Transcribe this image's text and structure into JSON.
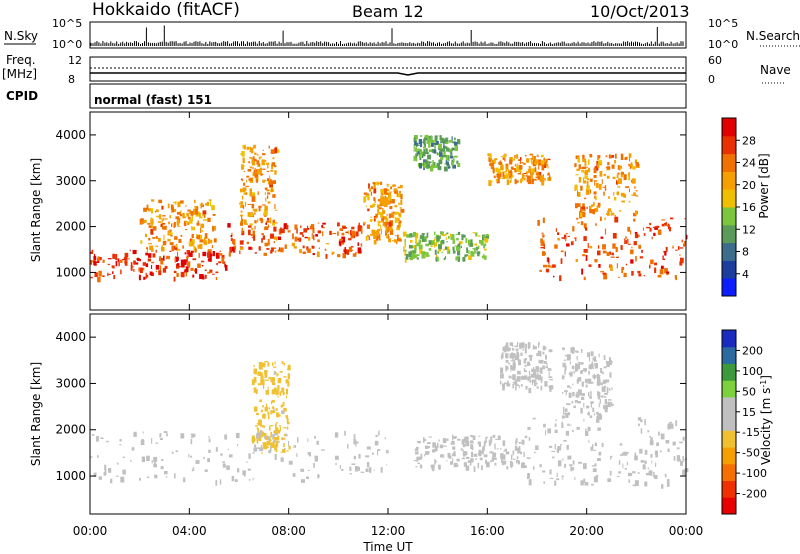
{
  "header": {
    "station": "Hokkaido (fitACF)",
    "beam": "Beam 12",
    "date": "10/Oct/2013"
  },
  "top_panels": {
    "nsky_label": "N.Sky",
    "nsky_ticks": [
      "10^5",
      "10^0"
    ],
    "nsearch_label": "N.Search",
    "freq_label_1": "Freq.",
    "freq_label_2": "[MHz]",
    "freq_ticks": [
      "12",
      "8"
    ],
    "nave_label": "Nave",
    "nave_ticks": [
      "60",
      "0"
    ],
    "cpid_label": "CPID",
    "cpid_value": "normal (fast) 151"
  },
  "chart_data": [
    {
      "type": "heatmap",
      "panel": "power",
      "ylabel": "Slant Range [km]",
      "yticks": [
        1000,
        2000,
        3000,
        4000
      ],
      "ylim": [
        180,
        4500
      ],
      "xlim": [
        0,
        24
      ],
      "colorbar_label": "Power [dB]",
      "colorbar_ticks": [
        28,
        24,
        20,
        16,
        12,
        8,
        4
      ],
      "colorbar_range": [
        0,
        32
      ],
      "colors": [
        "#0a1eff",
        "#1a3d9e",
        "#3c6e8c",
        "#5a9b5a",
        "#7bc63c",
        "#f0c000",
        "#f5a000",
        "#f07000",
        "#e83000",
        "#e00000"
      ],
      "regions": [
        {
          "t0": 0.0,
          "t1": 5.5,
          "r0": 900,
          "r1": 1500,
          "level": 28
        },
        {
          "t0": 5.5,
          "t1": 11.0,
          "r0": 1400,
          "r1": 2100,
          "level": 26
        },
        {
          "t0": 2.0,
          "t1": 5.0,
          "r0": 1500,
          "r1": 2600,
          "level": 22
        },
        {
          "t0": 6.0,
          "t1": 7.5,
          "r0": 2000,
          "r1": 3800,
          "level": 22
        },
        {
          "t0": 11.0,
          "t1": 12.5,
          "r0": 1700,
          "r1": 3000,
          "level": 22
        },
        {
          "t0": 13.0,
          "t1": 14.8,
          "r0": 3300,
          "r1": 4000,
          "level": 12
        },
        {
          "t0": 12.5,
          "t1": 16.0,
          "r0": 1300,
          "r1": 1900,
          "level": 14
        },
        {
          "t0": 16.0,
          "t1": 18.5,
          "r0": 3000,
          "r1": 3600,
          "level": 22
        },
        {
          "t0": 18.0,
          "t1": 24.0,
          "r0": 900,
          "r1": 2200,
          "level": 26
        },
        {
          "t0": 19.5,
          "t1": 22.0,
          "r0": 2200,
          "r1": 3600,
          "level": 22
        }
      ]
    },
    {
      "type": "heatmap",
      "panel": "velocity",
      "ylabel": "Slant Range [km]",
      "yticks": [
        1000,
        2000,
        3000,
        4000
      ],
      "ylim": [
        180,
        4500
      ],
      "xlim": [
        0,
        24
      ],
      "xticks": [
        "00:00",
        "04:00",
        "08:00",
        "12:00",
        "16:00",
        "20:00",
        "00:00"
      ],
      "xlabel": "Time UT",
      "colorbar_label_main": "Velocity",
      "colorbar_label_units": "[m s",
      "colorbar_label_exp": "-1",
      "colorbar_label_close": "]",
      "colorbar_ticks": [
        "200",
        "100",
        "50",
        "15",
        "-15",
        "-50",
        "-100",
        "-200"
      ],
      "colorbar_range": [
        -250,
        250
      ],
      "colors": [
        "#e80000",
        "#f03000",
        "#f57000",
        "#f5a000",
        "#f0c030",
        "#c0c0c0",
        "#c0c0c0",
        "#7cd13c",
        "#3c9a3c",
        "#2a6aa0",
        "#1a2cc0"
      ],
      "regions": [
        {
          "t0": 0.0,
          "t1": 12.0,
          "r0": 900,
          "r1": 2000,
          "value": 0
        },
        {
          "t0": 6.5,
          "t1": 8.0,
          "r0": 1500,
          "r1": 3500,
          "value": -40
        },
        {
          "t0": 13.0,
          "t1": 17.5,
          "r0": 1200,
          "r1": 1900,
          "value": 40
        },
        {
          "t0": 16.5,
          "t1": 18.5,
          "r0": 2900,
          "r1": 3900,
          "value": 30
        },
        {
          "t0": 17.5,
          "t1": 24.0,
          "r0": 800,
          "r1": 2300,
          "value": 0
        },
        {
          "t0": 19.0,
          "t1": 21.0,
          "r0": 2300,
          "r1": 3800,
          "value": 40
        }
      ]
    }
  ]
}
